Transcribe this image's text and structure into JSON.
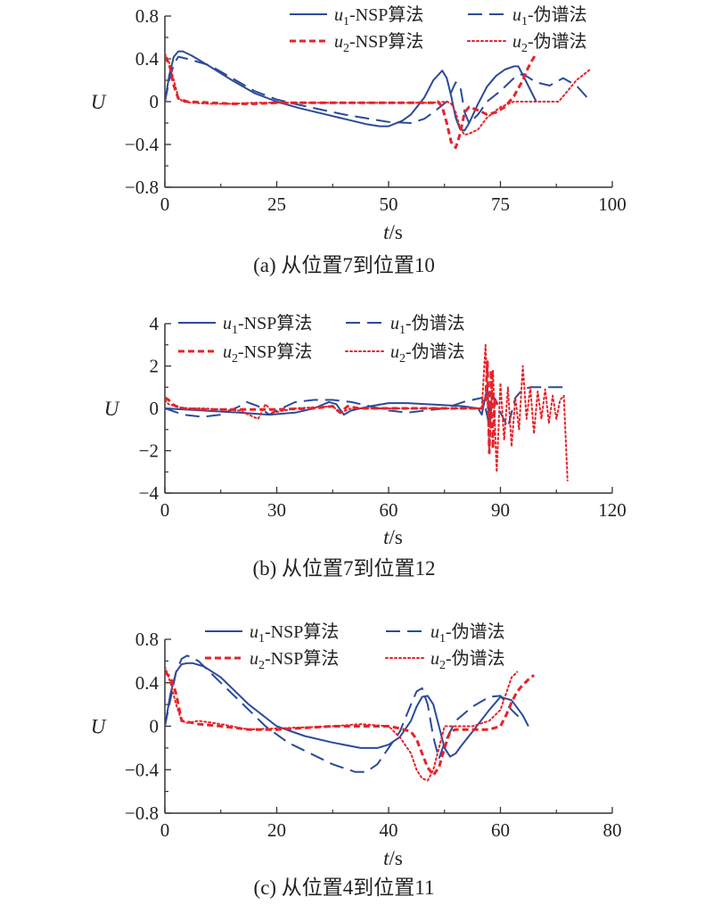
{
  "colors": {
    "u1": "#2b4a9a",
    "u2": "#e5232a",
    "axis": "#333333"
  },
  "legend_labels": {
    "u1_nsp": [
      "u",
      "1",
      "-NSP算法"
    ],
    "u1_ps": [
      "u",
      "1",
      "-伪谱法"
    ],
    "u2_nsp": [
      "u",
      "2",
      "-NSP算法"
    ],
    "u2_ps": [
      "u",
      "2",
      "-伪谱法"
    ]
  },
  "chart_data": [
    {
      "type": "line",
      "caption": "(a) 从位置7到位置10",
      "xlabel": "t/s",
      "ylabel": "U",
      "xlim": [
        0,
        100
      ],
      "ylim": [
        -0.8,
        0.8
      ],
      "xticks": [
        0,
        25,
        50,
        75,
        100
      ],
      "yticks": [
        0.8,
        0.4,
        0,
        -0.4,
        -0.8
      ],
      "ytick_labels": [
        "0.8",
        "0.4",
        "0",
        "−0.4",
        "−0.8"
      ],
      "series": [
        {
          "name": "u1-NSP算法",
          "style": "solid",
          "color": "u1",
          "x": [
            0,
            1,
            2,
            3,
            4,
            6,
            10,
            15,
            20,
            25,
            30,
            35,
            40,
            45,
            48,
            50,
            53,
            55,
            58,
            60,
            62,
            63,
            64,
            65,
            66,
            67,
            68,
            70,
            72,
            74,
            76,
            78,
            79,
            80,
            83
          ],
          "y": [
            0.0,
            0.25,
            0.42,
            0.47,
            0.47,
            0.43,
            0.33,
            0.2,
            0.08,
            0.0,
            -0.06,
            -0.11,
            -0.16,
            -0.21,
            -0.23,
            -0.23,
            -0.18,
            -0.12,
            0.04,
            0.2,
            0.29,
            0.22,
            0.05,
            -0.15,
            -0.26,
            -0.27,
            -0.2,
            -0.02,
            0.14,
            0.24,
            0.3,
            0.33,
            0.33,
            0.25,
            0.0
          ]
        },
        {
          "name": "u1-伪谱法",
          "style": "dashed",
          "color": "u1",
          "x": [
            0,
            1,
            2,
            3,
            5,
            10,
            15,
            20,
            25,
            30,
            40,
            50,
            55,
            58,
            60,
            63,
            65,
            66,
            67,
            68,
            70,
            72,
            75,
            78,
            80,
            83,
            86,
            89,
            92,
            95
          ],
          "y": [
            0.0,
            0.2,
            0.35,
            0.42,
            0.4,
            0.34,
            0.22,
            0.1,
            0.02,
            -0.03,
            -0.12,
            -0.19,
            -0.2,
            -0.16,
            -0.1,
            0.0,
            0.18,
            0.15,
            -0.1,
            -0.2,
            -0.12,
            0.0,
            0.1,
            0.22,
            0.26,
            0.18,
            0.15,
            0.22,
            0.15,
            0.01
          ]
        },
        {
          "name": "u2-NSP算法",
          "style": "dashed-heavy",
          "color": "u2",
          "x": [
            0,
            1,
            2,
            3,
            5,
            10,
            15,
            20,
            25,
            30,
            40,
            50,
            55,
            58,
            60,
            61,
            62,
            63,
            64,
            65,
            66,
            67,
            68,
            70,
            72,
            74,
            76,
            78,
            80,
            81,
            82,
            83
          ],
          "y": [
            0.42,
            0.35,
            0.15,
            0.03,
            0.0,
            -0.01,
            -0.02,
            -0.02,
            -0.01,
            -0.01,
            -0.01,
            -0.01,
            -0.01,
            -0.01,
            -0.01,
            0.0,
            -0.05,
            -0.2,
            -0.38,
            -0.43,
            -0.3,
            -0.1,
            -0.05,
            -0.08,
            -0.12,
            -0.1,
            -0.05,
            0.05,
            0.2,
            0.3,
            0.38,
            0.45
          ]
        },
        {
          "name": "u2-伪谱法",
          "style": "dotted",
          "color": "u2",
          "x": [
            0,
            1,
            2,
            3,
            4,
            6,
            10,
            15,
            20,
            25,
            30,
            40,
            50,
            55,
            60,
            63,
            64,
            65,
            66,
            67,
            68,
            70,
            72,
            75,
            78,
            80,
            85,
            88,
            90,
            92,
            95
          ],
          "y": [
            0.45,
            0.36,
            0.2,
            0.04,
            0.0,
            -0.01,
            -0.02,
            -0.02,
            -0.01,
            -0.01,
            -0.01,
            -0.01,
            -0.01,
            -0.01,
            -0.01,
            0.0,
            -0.02,
            -0.1,
            -0.25,
            -0.31,
            -0.3,
            -0.26,
            -0.15,
            -0.05,
            0.0,
            0.0,
            0.0,
            0.0,
            0.1,
            0.2,
            0.3
          ]
        }
      ]
    },
    {
      "type": "line",
      "caption": "(b) 从位置7到位置12",
      "xlabel": "t/s",
      "ylabel": "U",
      "xlim": [
        0,
        120
      ],
      "ylim": [
        -4,
        4
      ],
      "xticks": [
        0,
        30,
        60,
        90,
        120
      ],
      "yticks": [
        4,
        2,
        0,
        -2,
        -4
      ],
      "ytick_labels": [
        "4",
        "2",
        "0",
        "−2",
        "−4"
      ],
      "series": [
        {
          "name": "u1-NSP算法",
          "style": "solid",
          "color": "u1",
          "x": [
            0,
            10,
            20,
            28,
            35,
            40,
            44,
            46,
            48,
            50,
            55,
            60,
            65,
            70,
            75,
            80,
            84,
            85,
            86,
            86.5,
            87,
            87.5,
            88
          ],
          "y": [
            0.0,
            -0.1,
            -0.2,
            -0.3,
            -0.2,
            0.0,
            0.3,
            0.2,
            -0.3,
            -0.1,
            0.1,
            0.25,
            0.25,
            0.2,
            0.15,
            0.1,
            0.0,
            -0.3,
            0.6,
            1.0,
            -0.5,
            0.3,
            0.1
          ]
        },
        {
          "name": "u1-伪谱法",
          "style": "dashed",
          "color": "u1",
          "x": [
            0,
            5,
            10,
            15,
            20,
            22,
            25,
            28,
            30,
            35,
            40,
            45,
            50,
            55,
            60,
            65,
            70,
            75,
            80,
            85,
            86,
            87,
            88,
            89,
            90,
            92,
            94,
            96,
            98,
            100,
            105,
            108
          ],
          "y": [
            0.0,
            -0.3,
            -0.4,
            -0.3,
            0.1,
            0.3,
            0.1,
            -0.3,
            -0.1,
            0.3,
            0.4,
            0.4,
            0.3,
            0.1,
            -0.1,
            -0.2,
            -0.1,
            0.0,
            0.3,
            0.5,
            0.0,
            -0.8,
            0.6,
            0.3,
            -0.2,
            -0.9,
            0.5,
            0.9,
            1.0,
            1.0,
            1.0,
            1.0
          ]
        },
        {
          "name": "u2-NSP算法",
          "style": "dashed-heavy",
          "color": "u2",
          "x": [
            0,
            1,
            2,
            3,
            5,
            10,
            20,
            30,
            40,
            45,
            47,
            49,
            52,
            60,
            70,
            80,
            85,
            86,
            86.5,
            87,
            87.5,
            88,
            88.5,
            89
          ],
          "y": [
            0.5,
            0.4,
            0.2,
            0.1,
            0.0,
            -0.05,
            -0.05,
            -0.05,
            0.0,
            0.1,
            -0.2,
            0.1,
            0.0,
            0.0,
            0.0,
            0.0,
            0.0,
            0.4,
            2.2,
            -2.1,
            1.8,
            -1.9,
            0.5,
            0.0
          ]
        },
        {
          "name": "u2-伪谱法",
          "style": "dotted",
          "color": "u2",
          "x": [
            0,
            1,
            3,
            5,
            10,
            20,
            25,
            27,
            29,
            35,
            45,
            47,
            50,
            60,
            70,
            80,
            85,
            86,
            87,
            88,
            89,
            90,
            91,
            92,
            93,
            94,
            95,
            96,
            97,
            98,
            99,
            100,
            101,
            102,
            103,
            104,
            105,
            106,
            107,
            108
          ],
          "y": [
            0.4,
            0.2,
            0.1,
            0.0,
            0.0,
            -0.1,
            -0.5,
            0.2,
            -0.2,
            0.0,
            0.1,
            -0.2,
            0.0,
            0.0,
            0.0,
            0.0,
            0.0,
            3.0,
            -2.0,
            1.8,
            -3.0,
            1.2,
            -1.5,
            1.0,
            -1.8,
            0.5,
            -1.0,
            2.0,
            -0.5,
            1.0,
            -1.2,
            0.8,
            -0.5,
            0.9,
            -0.7,
            0.6,
            -0.5,
            0.4,
            0.6,
            -3.4
          ]
        }
      ]
    },
    {
      "type": "line",
      "caption": "(c) 从位置4到位置11",
      "xlabel": "t/s",
      "ylabel": "U",
      "xlim": [
        0,
        80
      ],
      "ylim": [
        -0.8,
        0.8
      ],
      "xticks": [
        0,
        20,
        40,
        60,
        80
      ],
      "yticks": [
        0.8,
        0.4,
        0,
        -0.4,
        -0.8
      ],
      "ytick_labels": [
        "0.8",
        "0.4",
        "0",
        "−0.4",
        "−0.8"
      ],
      "series": [
        {
          "name": "u1-NSP算法",
          "style": "solid",
          "color": "u1",
          "x": [
            0,
            1,
            2,
            3,
            4,
            5,
            7,
            10,
            15,
            20,
            25,
            30,
            35,
            38,
            40,
            42,
            44,
            45,
            46,
            47,
            48,
            49,
            50,
            51,
            52,
            53,
            55,
            58,
            60,
            62,
            64,
            65
          ],
          "y": [
            0.0,
            0.3,
            0.5,
            0.57,
            0.58,
            0.58,
            0.55,
            0.45,
            0.2,
            0.0,
            -0.09,
            -0.15,
            -0.2,
            -0.2,
            -0.17,
            -0.1,
            0.05,
            0.18,
            0.27,
            0.28,
            0.2,
            0.0,
            -0.2,
            -0.28,
            -0.25,
            -0.18,
            -0.05,
            0.15,
            0.27,
            0.24,
            0.1,
            0.0
          ]
        },
        {
          "name": "u1-伪谱法",
          "style": "dashed",
          "color": "u1",
          "x": [
            0,
            1,
            2,
            3,
            4,
            6,
            8,
            10,
            14,
            18,
            22,
            26,
            30,
            34,
            36,
            38,
            40,
            42,
            44,
            45,
            46,
            47,
            48,
            49,
            50,
            52,
            55,
            58,
            60,
            62,
            64
          ],
          "y": [
            0.0,
            0.25,
            0.5,
            0.62,
            0.65,
            0.6,
            0.5,
            0.4,
            0.2,
            0.0,
            -0.15,
            -0.25,
            -0.35,
            -0.42,
            -0.42,
            -0.35,
            -0.2,
            -0.05,
            0.2,
            0.32,
            0.35,
            0.2,
            -0.1,
            -0.3,
            -0.15,
            0.05,
            0.18,
            0.27,
            0.28,
            0.15,
            0.05
          ]
        },
        {
          "name": "u2-NSP算法",
          "style": "dashed-heavy",
          "color": "u2",
          "x": [
            0,
            1,
            2,
            3,
            4,
            6,
            10,
            15,
            20,
            30,
            40,
            42,
            44,
            45,
            46,
            47,
            48,
            49,
            50,
            51,
            52,
            54,
            56,
            58,
            60,
            61,
            62,
            63,
            64,
            65,
            66
          ],
          "y": [
            0.5,
            0.45,
            0.3,
            0.05,
            0.04,
            0.02,
            0.0,
            -0.03,
            -0.03,
            0.0,
            0.0,
            -0.02,
            -0.05,
            -0.12,
            -0.25,
            -0.38,
            -0.45,
            -0.38,
            -0.2,
            -0.05,
            -0.03,
            -0.03,
            -0.03,
            -0.03,
            0.0,
            0.1,
            0.22,
            0.32,
            0.38,
            0.43,
            0.47
          ]
        },
        {
          "name": "u2-伪谱法",
          "style": "dotted",
          "color": "u2",
          "x": [
            0,
            1,
            2,
            3,
            4,
            6,
            10,
            15,
            20,
            30,
            35,
            40,
            42,
            44,
            45,
            46,
            47,
            48,
            49,
            50,
            52,
            55,
            58,
            60,
            61,
            62,
            63
          ],
          "y": [
            0.55,
            0.4,
            0.2,
            0.05,
            0.03,
            0.05,
            0.02,
            -0.03,
            -0.02,
            0.0,
            0.02,
            0.0,
            -0.1,
            -0.25,
            -0.4,
            -0.48,
            -0.5,
            -0.4,
            -0.2,
            0.0,
            0.0,
            0.0,
            0.05,
            0.15,
            0.3,
            0.45,
            0.5
          ]
        }
      ]
    }
  ]
}
